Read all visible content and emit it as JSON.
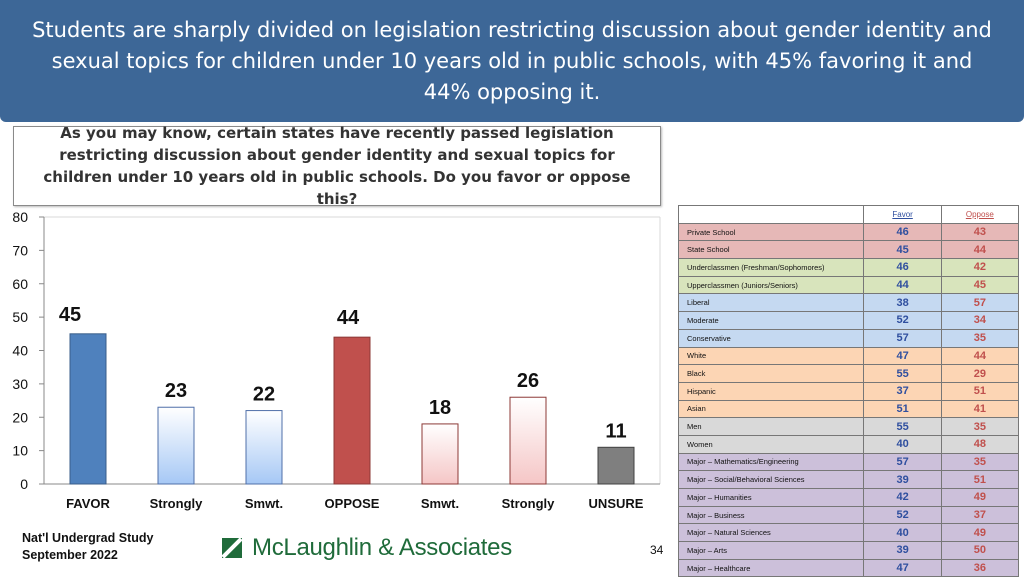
{
  "header": {
    "title": "Students are sharply divided on legislation restricting discussion about gender identity and sexual topics for children under 10 years old in public schools, with 45% favoring it and 44% opposing it."
  },
  "question": "As you may know, certain states have recently passed legislation restricting discussion about gender identity and sexual topics for children under 10 years old in public schools. Do you favor or oppose this?",
  "chart_data": {
    "type": "bar",
    "categories": [
      "FAVOR",
      "Strongly",
      "Smwt.",
      "OPPOSE",
      "Smwt.",
      "Strongly",
      "UNSURE"
    ],
    "values": [
      45,
      23,
      22,
      44,
      18,
      26,
      11
    ],
    "ylim": [
      0,
      80
    ],
    "yticks": [
      0,
      10,
      20,
      30,
      40,
      50,
      60,
      70,
      80
    ],
    "grid": false,
    "colors": {
      "favor": "#4f81bd",
      "favor_light": "#a6c8f5",
      "oppose": "#c0504d",
      "oppose_light": "#f5c6c6",
      "unsure": "#7f7f7f"
    }
  },
  "crosstab": {
    "headers": [
      "Favor",
      "Oppose"
    ],
    "rows": [
      {
        "label": "Private School",
        "favor": "46",
        "oppose": "43",
        "color": "#e6b8b7"
      },
      {
        "label": "State School",
        "favor": "45",
        "oppose": "44",
        "color": "#e6b8b7"
      },
      {
        "label": "Underclassmen (Freshman/Sophomores)",
        "favor": "46",
        "oppose": "42",
        "color": "#d8e4bc"
      },
      {
        "label": "Upperclassmen (Juniors/Seniors)",
        "favor": "44",
        "oppose": "45",
        "color": "#d8e4bc"
      },
      {
        "label": "Liberal",
        "favor": "38",
        "oppose": "57",
        "color": "#c5d9f1"
      },
      {
        "label": "Moderate",
        "favor": "52",
        "oppose": "34",
        "color": "#c5d9f1"
      },
      {
        "label": "Conservative",
        "favor": "57",
        "oppose": "35",
        "color": "#c5d9f1"
      },
      {
        "label": "White",
        "favor": "47",
        "oppose": "44",
        "color": "#fcd5b4"
      },
      {
        "label": "Black",
        "favor": "55",
        "oppose": "29",
        "color": "#fcd5b4"
      },
      {
        "label": "Hispanic",
        "favor": "37",
        "oppose": "51",
        "color": "#fcd5b4"
      },
      {
        "label": "Asian",
        "favor": "51",
        "oppose": "41",
        "color": "#fcd5b4"
      },
      {
        "label": "Men",
        "favor": "55",
        "oppose": "35",
        "color": "#d9d9d9"
      },
      {
        "label": "Women",
        "favor": "40",
        "oppose": "48",
        "color": "#d9d9d9"
      },
      {
        "label": "Major – Mathematics/Engineering",
        "favor": "57",
        "oppose": "35",
        "color": "#ccc0da"
      },
      {
        "label": "Major – Social/Behavioral Sciences",
        "favor": "39",
        "oppose": "51",
        "color": "#ccc0da"
      },
      {
        "label": "Major – Humanities",
        "favor": "42",
        "oppose": "49",
        "color": "#ccc0da"
      },
      {
        "label": "Major – Business",
        "favor": "52",
        "oppose": "37",
        "color": "#ccc0da"
      },
      {
        "label": "Major – Natural Sciences",
        "favor": "40",
        "oppose": "49",
        "color": "#ccc0da"
      },
      {
        "label": "Major – Arts",
        "favor": "39",
        "oppose": "50",
        "color": "#ccc0da"
      },
      {
        "label": "Major – Healthcare",
        "favor": "47",
        "oppose": "36",
        "color": "#ccc0da"
      }
    ]
  },
  "footer": {
    "study_line1": "Nat'l Undergrad Study",
    "study_line2": "September 2022",
    "logo_text": "McLaughlin & Associates",
    "page_number": "34"
  }
}
